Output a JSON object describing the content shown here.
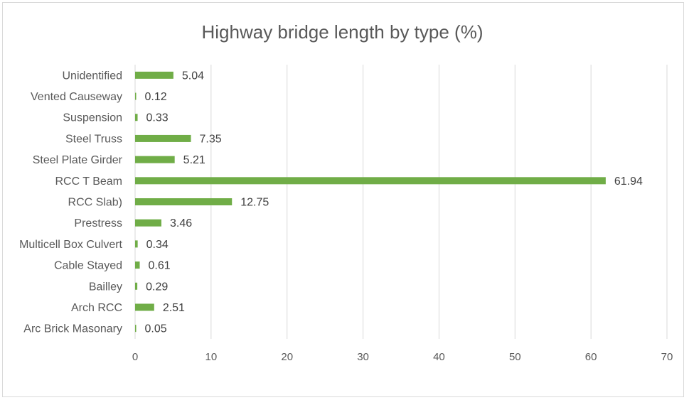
{
  "chart_data": {
    "type": "bar",
    "orientation": "horizontal",
    "title": "Highway bridge length by type (%)",
    "xlabel": "",
    "ylabel": "",
    "categories": [
      "Unidentified",
      "Vented Causeway",
      "Suspension",
      "Steel Truss",
      "Steel Plate Girder",
      "RCC T Beam",
      "RCC Slab)",
      "Prestress",
      "Multicell Box Culvert",
      "Cable Stayed",
      "Bailley",
      "Arch RCC",
      "Arc Brick Masonary"
    ],
    "values": [
      5.04,
      0.12,
      0.33,
      7.35,
      5.21,
      61.94,
      12.75,
      3.46,
      0.34,
      0.61,
      0.29,
      2.51,
      0.05
    ],
    "value_labels": [
      "5.04",
      "0.12",
      "0.33",
      "7.35",
      "5.21",
      "61.94",
      "12.75",
      "3.46",
      "0.34",
      "0.61",
      "0.29",
      "2.51",
      "0.05"
    ],
    "xlim": [
      0,
      70
    ],
    "xticks": [
      "0",
      "10",
      "20",
      "30",
      "40",
      "50",
      "60",
      "70"
    ],
    "grid": "vertical",
    "legend": "none",
    "bar_color": "#70ad47",
    "grid_color": "#d9d9d9",
    "text_color": "#595959"
  }
}
